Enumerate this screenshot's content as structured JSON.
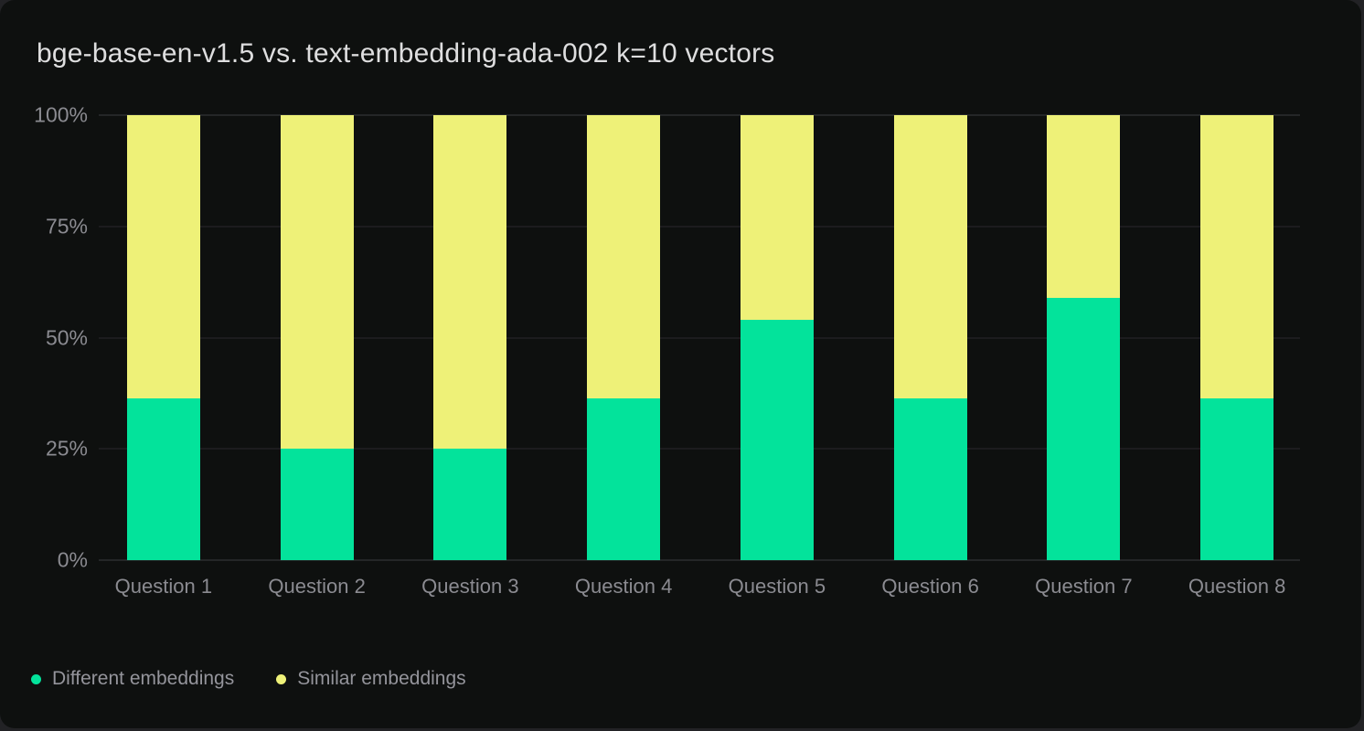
{
  "title": "bge-base-en-v1.5 vs. text-embedding-ada-002 k=10 vectors",
  "colors": {
    "card_background": "#0e100f",
    "page_background": "#222225",
    "different_embeddings": "#03e39b",
    "similar_embeddings": "#eef178"
  },
  "chart_data": {
    "type": "bar",
    "stacked": true,
    "title": "bge-base-en-v1.5 vs. text-embedding-ada-002 k=10 vectors",
    "categories": [
      "Question 1",
      "Question 2",
      "Question 3",
      "Question 4",
      "Question 5",
      "Question 6",
      "Question 7",
      "Question 8"
    ],
    "series": [
      {
        "name": "Different embeddings",
        "color": "#03e39b",
        "values": [
          36.4,
          25,
          25,
          36.4,
          54,
          36.4,
          59,
          36.4
        ]
      },
      {
        "name": "Similar embeddings",
        "color": "#eef178",
        "values": [
          63.6,
          75,
          75,
          63.6,
          46,
          63.6,
          41,
          63.6
        ]
      }
    ],
    "xlabel": "",
    "ylabel": "",
    "ylim": [
      0,
      100
    ],
    "yticks": [
      {
        "label": "100%",
        "value": 100
      },
      {
        "label": "75%",
        "value": 75
      },
      {
        "label": "50%",
        "value": 50
      },
      {
        "label": "25%",
        "value": 25
      },
      {
        "label": "0%",
        "value": 0
      }
    ],
    "grid": true,
    "legend_position": "bottom-left"
  },
  "legend": {
    "items": [
      {
        "label": "Different embeddings",
        "color": "#03e39b"
      },
      {
        "label": "Similar embeddings",
        "color": "#eef178"
      }
    ]
  }
}
